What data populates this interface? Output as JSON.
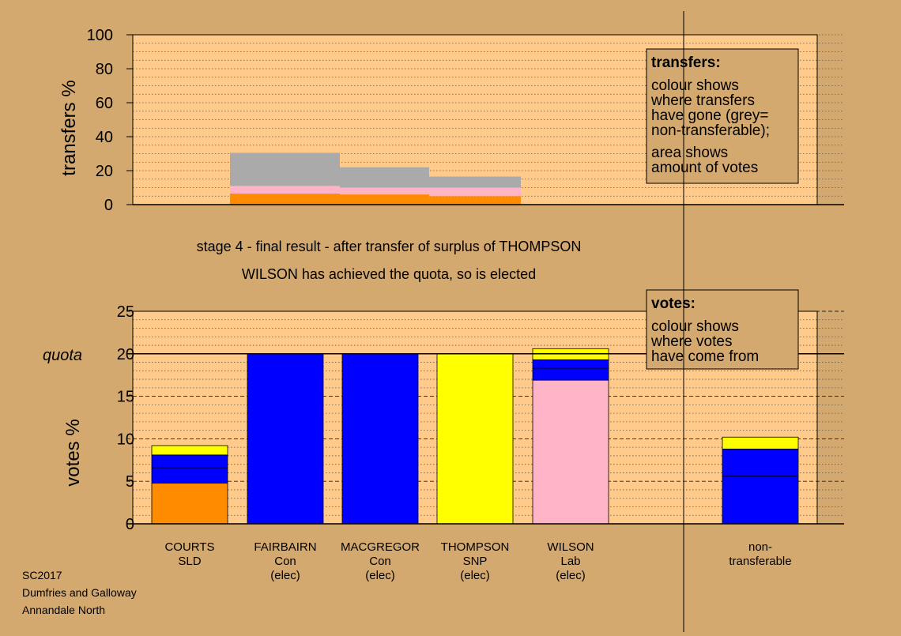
{
  "colors": {
    "background": "#d4a96f",
    "plot_bg": "#ffca8a",
    "SLD": "#ff8c00",
    "Con": "#0000ff",
    "SNP": "#ffff00",
    "Lab": "#ffb3c6",
    "nontransferable": "#aaaaaa"
  },
  "top_chart": {
    "ylabel": "transfers %",
    "ticks": [
      0,
      20,
      40,
      60,
      80,
      100
    ],
    "box": {
      "title": "transfers:",
      "lines1": [
        "colour shows",
        "where transfers",
        "have gone (grey=",
        "non-transferable);"
      ],
      "lines2": [
        "area shows",
        "amount of votes"
      ]
    }
  },
  "captions": {
    "stage": "stage 4 - final result - after transfer of surplus of THOMPSON",
    "result": "WILSON has achieved the quota, so is elected"
  },
  "bottom_chart": {
    "ylabel": "votes %",
    "quota_label": "quota",
    "ticks": [
      0,
      5,
      10,
      15,
      20,
      25
    ],
    "box": {
      "title": "votes:",
      "lines": [
        "colour shows",
        "where votes",
        "have come from"
      ]
    }
  },
  "footer": {
    "lines": [
      "SC2017",
      "Dumfries and Galloway",
      "Annandale North"
    ]
  },
  "chart_data": [
    {
      "type": "bar",
      "title": "",
      "ylabel": "transfers %",
      "ylim": [
        0,
        100
      ],
      "grid": true,
      "note": "stacked transfer bars (width proportional to votes transferred)",
      "bars": [
        {
          "segments": [
            {
              "party": "SLD",
              "from": 0,
              "to": 6.5
            },
            {
              "party": "Lab",
              "from": 6.5,
              "to": 11
            },
            {
              "party": "nontransferable",
              "from": 11,
              "to": 30.5
            }
          ]
        },
        {
          "segments": [
            {
              "party": "SLD",
              "from": 0,
              "to": 6
            },
            {
              "party": "Lab",
              "from": 6,
              "to": 10
            },
            {
              "party": "nontransferable",
              "from": 10,
              "to": 22
            }
          ]
        },
        {
          "segments": [
            {
              "party": "SLD",
              "from": 0,
              "to": 5
            },
            {
              "party": "Lab",
              "from": 5,
              "to": 10
            },
            {
              "party": "nontransferable",
              "from": 10,
              "to": 16.5
            }
          ]
        }
      ]
    },
    {
      "type": "bar",
      "title": "",
      "ylabel": "votes %",
      "ylim": [
        0,
        25
      ],
      "quota": 20,
      "grid": true,
      "categories": [
        {
          "name": "COURTS",
          "party": "SLD",
          "status": ""
        },
        {
          "name": "FAIRBAIRN",
          "party": "Con",
          "status": "(elec)"
        },
        {
          "name": "MACGREGOR",
          "party": "Con",
          "status": "(elec)"
        },
        {
          "name": "THOMPSON",
          "party": "SNP",
          "status": "(elec)"
        },
        {
          "name": "WILSON",
          "party": "Lab",
          "status": "(elec)"
        },
        {
          "name": "non-",
          "party": "transferable",
          "status": ""
        }
      ],
      "stacks": [
        [
          {
            "party": "SLD",
            "from": 0,
            "to": 4.8
          },
          {
            "party": "Con",
            "from": 4.8,
            "to": 6.6
          },
          {
            "party": "Con",
            "from": 6.6,
            "to": 8.1
          },
          {
            "party": "SNP",
            "from": 8.1,
            "to": 9.2
          }
        ],
        [
          {
            "party": "Con",
            "from": 0,
            "to": 20
          }
        ],
        [
          {
            "party": "Con",
            "from": 0,
            "to": 20
          }
        ],
        [
          {
            "party": "SNP",
            "from": 0,
            "to": 20
          }
        ],
        [
          {
            "party": "Lab",
            "from": 0,
            "to": 16.9
          },
          {
            "party": "Con",
            "from": 16.9,
            "to": 18.3
          },
          {
            "party": "Con",
            "from": 18.3,
            "to": 19.3
          },
          {
            "party": "SNP",
            "from": 19.3,
            "to": 20.6
          }
        ],
        [
          {
            "party": "Con",
            "from": 0,
            "to": 5.6
          },
          {
            "party": "Con",
            "from": 5.6,
            "to": 8.8
          },
          {
            "party": "SNP",
            "from": 8.8,
            "to": 10.2
          }
        ]
      ]
    }
  ]
}
